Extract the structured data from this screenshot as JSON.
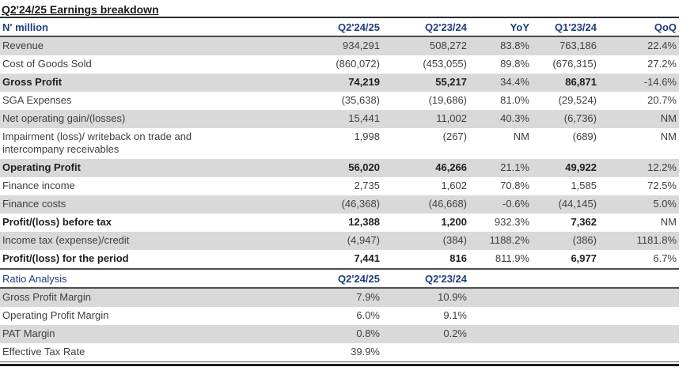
{
  "title": "Q2'24/25 Earnings breakdown",
  "colors": {
    "header_navy": "#1f3d7d",
    "row_shade": "#d9d9d9",
    "body_text": "#3f3f3f"
  },
  "main_table": {
    "columns": [
      "N' million",
      "Q2'24/25",
      "Q2'23/24",
      "YoY",
      "Q1'23/24",
      "QoQ"
    ],
    "rows": [
      {
        "label": "Revenue",
        "values": [
          "934,291",
          "508,272",
          "83.8%",
          "763,186",
          "22.4%"
        ],
        "bold": false,
        "shaded": true
      },
      {
        "label": "Cost of Goods Sold",
        "values": [
          "(860,072)",
          "(453,055)",
          "89.8%",
          "(676,315)",
          "27.2%"
        ],
        "bold": false,
        "shaded": false
      },
      {
        "label": "Gross Profit",
        "values": [
          "74,219",
          "55,217",
          "34.4%",
          "86,871",
          "-14.6%"
        ],
        "bold": true,
        "shaded": true
      },
      {
        "label": "SGA Expenses",
        "values": [
          "(35,638)",
          "(19,686)",
          "81.0%",
          "(29,524)",
          "20.7%"
        ],
        "bold": false,
        "shaded": false
      },
      {
        "label": "Net operating gain/(losses)",
        "values": [
          "15,441",
          "11,002",
          "40.3%",
          "(6,736)",
          "NM"
        ],
        "bold": false,
        "shaded": true
      },
      {
        "label": "Impairment (loss)/ writeback on trade and\nintercompany receivables",
        "values": [
          "1,998",
          "(267)",
          "NM",
          "(689)",
          "NM"
        ],
        "bold": false,
        "shaded": false
      },
      {
        "label": "Operating Profit",
        "values": [
          "56,020",
          "46,266",
          "21.1%",
          "49,922",
          "12.2%"
        ],
        "bold": true,
        "shaded": true
      },
      {
        "label": "Finance income",
        "values": [
          "2,735",
          "1,602",
          "70.8%",
          "1,585",
          "72.5%"
        ],
        "bold": false,
        "shaded": false
      },
      {
        "label": "Finance costs",
        "values": [
          "(46,368)",
          "(46,668)",
          "-0.6%",
          "(44,145)",
          "5.0%"
        ],
        "bold": false,
        "shaded": true
      },
      {
        "label": "Profit/(loss) before tax",
        "values": [
          "12,388",
          "1,200",
          "932.3%",
          "7,362",
          "NM"
        ],
        "bold": true,
        "shaded": false
      },
      {
        "label": "Income tax (expense)/credit",
        "values": [
          "(4,947)",
          "(384)",
          "1188.2%",
          "(386)",
          "1181.8%"
        ],
        "bold": false,
        "shaded": true
      },
      {
        "label": "Profit/(loss) for the period",
        "values": [
          "7,441",
          "816",
          "811.9%",
          "6,977",
          "6.7%"
        ],
        "bold": true,
        "shaded": false
      }
    ]
  },
  "ratio_table": {
    "columns": [
      "Ratio Analysis",
      "Q2'24/25",
      "Q2'23/24"
    ],
    "rows": [
      {
        "label": "Gross Profit Margin",
        "values": [
          "7.9%",
          "10.9%"
        ],
        "bold": false,
        "shaded": true
      },
      {
        "label": "Operating Profit Margin",
        "values": [
          "6.0%",
          "9.1%"
        ],
        "bold": false,
        "shaded": false
      },
      {
        "label": "PAT Margin",
        "values": [
          "0.8%",
          "0.2%"
        ],
        "bold": false,
        "shaded": true
      },
      {
        "label": "Effective Tax Rate",
        "values": [
          "39.9%"
        ],
        "bold": false,
        "shaded": false
      }
    ]
  }
}
